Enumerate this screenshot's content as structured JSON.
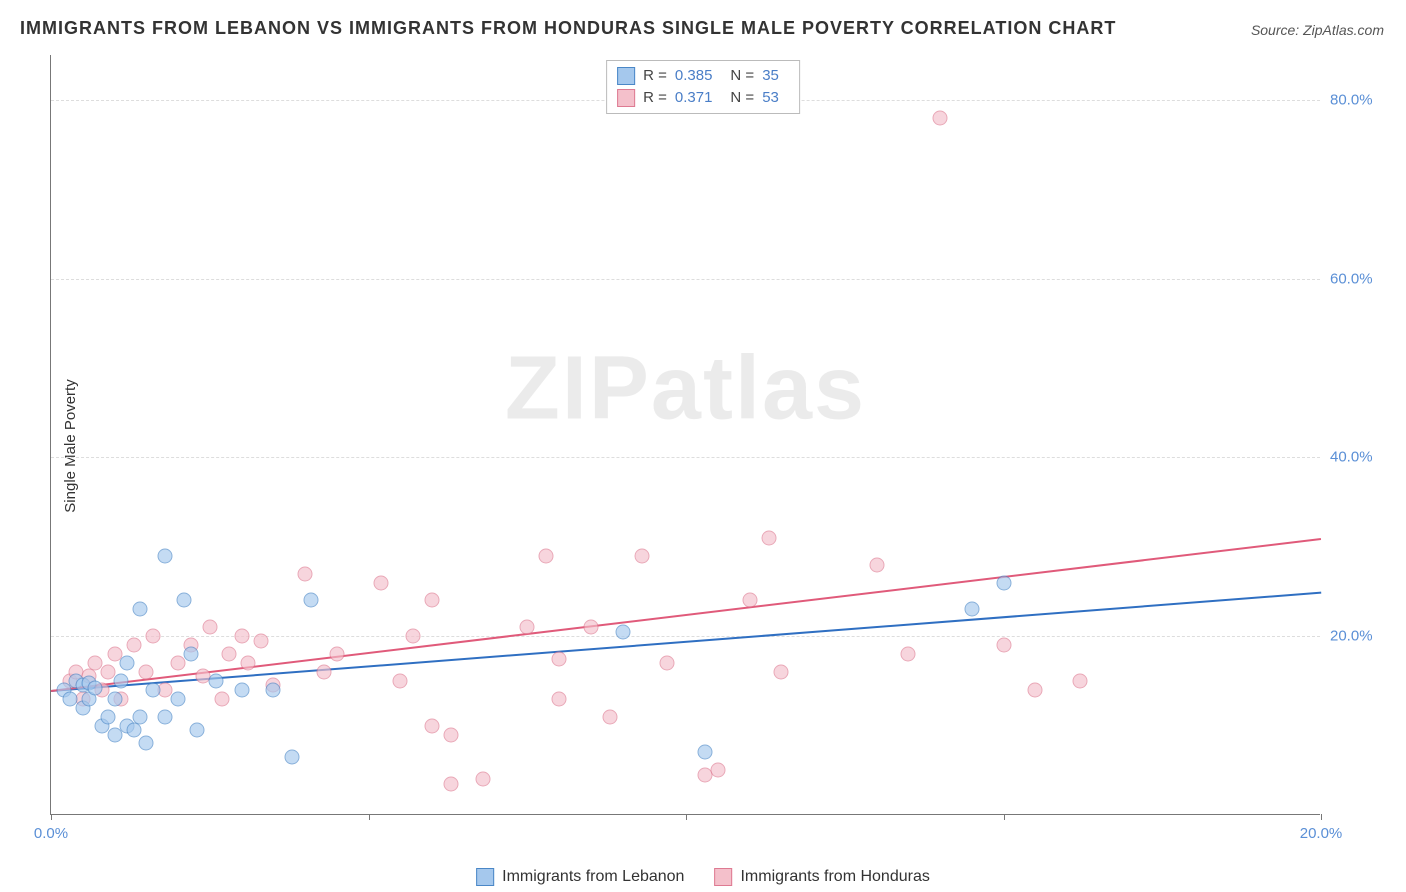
{
  "title": "IMMIGRANTS FROM LEBANON VS IMMIGRANTS FROM HONDURAS SINGLE MALE POVERTY CORRELATION CHART",
  "source": "Source: ZipAtlas.com",
  "watermark": "ZIPatlas",
  "ylabel": "Single Male Poverty",
  "chart": {
    "type": "scatter",
    "xlim": [
      0,
      20
    ],
    "ylim": [
      0,
      85
    ],
    "ytick_positions": [
      20,
      40,
      60,
      80
    ],
    "ytick_labels": [
      "20.0%",
      "40.0%",
      "60.0%",
      "80.0%"
    ],
    "xtick_positions": [
      0,
      5,
      10,
      15,
      20
    ],
    "xtick_labels_shown": {
      "0": "0.0%",
      "20": "20.0%"
    },
    "background_color": "#ffffff",
    "grid_color": "#dddddd",
    "axis_color": "#777777",
    "tick_label_color": "#5a8fd6"
  },
  "series": {
    "lebanon": {
      "label": "Immigrants from Lebanon",
      "fill": "#a5c8ed",
      "stroke": "#4a87c7",
      "line_color": "#2f6fc2",
      "r_label": "R =",
      "r_value": "0.385",
      "n_label": "N =",
      "n_value": "35",
      "trend": {
        "x0": 0,
        "y0": 14,
        "x1": 20,
        "y1": 25
      },
      "points": [
        [
          0.2,
          14
        ],
        [
          0.3,
          13
        ],
        [
          0.4,
          15
        ],
        [
          0.5,
          12
        ],
        [
          0.5,
          14.5
        ],
        [
          0.6,
          13
        ],
        [
          0.6,
          14.8
        ],
        [
          0.7,
          14.2
        ],
        [
          0.8,
          10
        ],
        [
          0.9,
          11
        ],
        [
          1.0,
          9
        ],
        [
          1.0,
          13
        ],
        [
          1.1,
          15
        ],
        [
          1.2,
          10
        ],
        [
          1.2,
          17
        ],
        [
          1.3,
          9.5
        ],
        [
          1.4,
          23
        ],
        [
          1.4,
          11
        ],
        [
          1.5,
          8
        ],
        [
          1.6,
          14
        ],
        [
          1.8,
          29
        ],
        [
          1.8,
          11
        ],
        [
          2.0,
          13
        ],
        [
          2.1,
          24
        ],
        [
          2.2,
          18
        ],
        [
          2.3,
          9.5
        ],
        [
          2.6,
          15
        ],
        [
          3.0,
          14
        ],
        [
          3.8,
          6.5
        ],
        [
          4.1,
          24
        ],
        [
          3.5,
          14
        ],
        [
          9.0,
          20.5
        ],
        [
          10.3,
          7
        ],
        [
          14.5,
          23
        ],
        [
          15,
          26
        ]
      ]
    },
    "honduras": {
      "label": "Immigrants from Honduras",
      "fill": "#f4c0cb",
      "stroke": "#de7a92",
      "line_color": "#e05a7a",
      "r_label": "R =",
      "r_value": "0.371",
      "n_label": "N =",
      "n_value": "53",
      "trend": {
        "x0": 0,
        "y0": 14,
        "x1": 20,
        "y1": 31
      },
      "points": [
        [
          0.3,
          15
        ],
        [
          0.4,
          16
        ],
        [
          0.5,
          13
        ],
        [
          0.6,
          15.5
        ],
        [
          0.7,
          17
        ],
        [
          0.8,
          14
        ],
        [
          0.9,
          16
        ],
        [
          1.0,
          18
        ],
        [
          1.1,
          13
        ],
        [
          1.3,
          19
        ],
        [
          1.5,
          16
        ],
        [
          1.6,
          20
        ],
        [
          1.8,
          14
        ],
        [
          2.0,
          17
        ],
        [
          2.2,
          19
        ],
        [
          2.4,
          15.5
        ],
        [
          2.5,
          21
        ],
        [
          2.7,
          13
        ],
        [
          2.8,
          18
        ],
        [
          3.0,
          20
        ],
        [
          3.1,
          17
        ],
        [
          3.3,
          19.5
        ],
        [
          3.5,
          14.5
        ],
        [
          4.0,
          27
        ],
        [
          4.3,
          16
        ],
        [
          4.5,
          18
        ],
        [
          5.2,
          26
        ],
        [
          5.5,
          15
        ],
        [
          5.7,
          20
        ],
        [
          6.0,
          24
        ],
        [
          6.0,
          10
        ],
        [
          6.3,
          3.5
        ],
        [
          6.3,
          9
        ],
        [
          6.8,
          4
        ],
        [
          7.5,
          21
        ],
        [
          7.8,
          29
        ],
        [
          8.0,
          13
        ],
        [
          8.5,
          21
        ],
        [
          8.8,
          11
        ],
        [
          9.3,
          29
        ],
        [
          9.7,
          17
        ],
        [
          10.3,
          4.5
        ],
        [
          10.5,
          5
        ],
        [
          11.0,
          24
        ],
        [
          11.3,
          31
        ],
        [
          11.5,
          16
        ],
        [
          13.0,
          28
        ],
        [
          13.5,
          18
        ],
        [
          14.0,
          78
        ],
        [
          15.0,
          19
        ],
        [
          15.5,
          14
        ],
        [
          16.2,
          15
        ],
        [
          8.0,
          17.5
        ]
      ]
    }
  }
}
